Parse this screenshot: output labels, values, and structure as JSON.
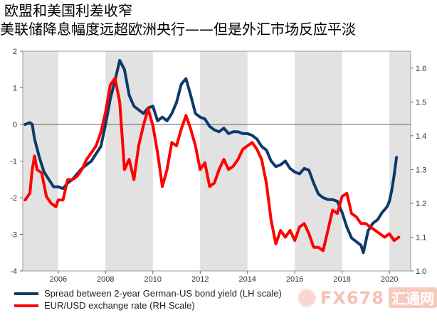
{
  "title": "欧盟和美国利差收窄",
  "subtitle": "美联储降息幅度远超欧洲央行——但是外汇市场反应平淡",
  "watermark": {
    "brand": "FX678",
    "cn": "汇通网"
  },
  "colors": {
    "spread": "#0d3a6b",
    "eurusd": "#ff0000",
    "band": "#e2e2e2"
  },
  "chart_data": {
    "type": "line",
    "left_axis": {
      "range": [
        -4,
        2
      ],
      "ticks": [
        "-4",
        "-3",
        "-2",
        "-1",
        "0",
        "1",
        "2"
      ]
    },
    "right_axis": {
      "range": [
        1.0,
        1.65
      ],
      "ticks": [
        "1.0",
        "1.1",
        "1.2",
        "1.3",
        "1.4",
        "1.5",
        "1.6"
      ]
    },
    "x_range": [
      2004.5,
      2020.9
    ],
    "x_ticks": [
      "2006",
      "2008",
      "2010",
      "2012",
      "2014",
      "2016",
      "2018",
      "2020"
    ],
    "shaded_years": [
      [
        2004.5,
        2006
      ],
      [
        2008,
        2010
      ],
      [
        2012,
        2014
      ],
      [
        2016,
        2018
      ],
      [
        2020,
        2020.9
      ]
    ],
    "zero_line": true,
    "legend_position": "bottom-left",
    "series": [
      {
        "name": "Spread between 2-year German-US bond yield (LH scale)",
        "axis": "left",
        "points": [
          [
            2004.6,
            0.0
          ],
          [
            2004.8,
            0.05
          ],
          [
            2004.9,
            0.0
          ],
          [
            2005.0,
            -0.4
          ],
          [
            2005.2,
            -0.9
          ],
          [
            2005.4,
            -1.3
          ],
          [
            2005.6,
            -1.5
          ],
          [
            2005.8,
            -1.7
          ],
          [
            2006.0,
            -1.7
          ],
          [
            2006.2,
            -1.75
          ],
          [
            2006.4,
            -1.6
          ],
          [
            2006.6,
            -1.5
          ],
          [
            2006.8,
            -1.35
          ],
          [
            2007.0,
            -1.2
          ],
          [
            2007.2,
            -1.1
          ],
          [
            2007.4,
            -1.0
          ],
          [
            2007.6,
            -0.8
          ],
          [
            2007.8,
            -0.6
          ],
          [
            2008.0,
            0.0
          ],
          [
            2008.2,
            0.7
          ],
          [
            2008.4,
            1.2
          ],
          [
            2008.6,
            1.75
          ],
          [
            2008.8,
            1.5
          ],
          [
            2009.0,
            0.8
          ],
          [
            2009.2,
            0.5
          ],
          [
            2009.4,
            0.4
          ],
          [
            2009.6,
            0.3
          ],
          [
            2009.8,
            0.45
          ],
          [
            2010.0,
            0.5
          ],
          [
            2010.2,
            0.1
          ],
          [
            2010.4,
            0.2
          ],
          [
            2010.6,
            0.1
          ],
          [
            2010.8,
            0.3
          ],
          [
            2011.0,
            0.6
          ],
          [
            2011.2,
            1.1
          ],
          [
            2011.4,
            1.25
          ],
          [
            2011.6,
            0.8
          ],
          [
            2011.8,
            0.3
          ],
          [
            2012.0,
            0.2
          ],
          [
            2012.2,
            0.15
          ],
          [
            2012.4,
            -0.05
          ],
          [
            2012.6,
            -0.15
          ],
          [
            2012.8,
            -0.2
          ],
          [
            2013.0,
            -0.1
          ],
          [
            2013.2,
            -0.25
          ],
          [
            2013.4,
            -0.2
          ],
          [
            2013.6,
            -0.2
          ],
          [
            2013.8,
            -0.25
          ],
          [
            2014.0,
            -0.25
          ],
          [
            2014.2,
            -0.3
          ],
          [
            2014.4,
            -0.4
          ],
          [
            2014.6,
            -0.6
          ],
          [
            2014.8,
            -0.7
          ],
          [
            2015.0,
            -1.0
          ],
          [
            2015.2,
            -1.15
          ],
          [
            2015.4,
            -1.1
          ],
          [
            2015.6,
            -1.0
          ],
          [
            2015.8,
            -1.2
          ],
          [
            2016.0,
            -1.3
          ],
          [
            2016.2,
            -1.35
          ],
          [
            2016.4,
            -1.2
          ],
          [
            2016.6,
            -1.25
          ],
          [
            2016.8,
            -1.6
          ],
          [
            2017.0,
            -1.9
          ],
          [
            2017.2,
            -2.0
          ],
          [
            2017.4,
            -2.05
          ],
          [
            2017.6,
            -2.05
          ],
          [
            2017.8,
            -2.1
          ],
          [
            2018.0,
            -2.4
          ],
          [
            2018.2,
            -2.8
          ],
          [
            2018.4,
            -3.1
          ],
          [
            2018.6,
            -3.2
          ],
          [
            2018.8,
            -3.3
          ],
          [
            2018.9,
            -3.5
          ],
          [
            2019.1,
            -2.9
          ],
          [
            2019.3,
            -2.7
          ],
          [
            2019.5,
            -2.6
          ],
          [
            2019.7,
            -2.4
          ],
          [
            2019.9,
            -2.25
          ],
          [
            2020.0,
            -2.1
          ],
          [
            2020.1,
            -1.8
          ],
          [
            2020.2,
            -1.4
          ],
          [
            2020.3,
            -0.9
          ]
        ]
      },
      {
        "name": "EUR/USD exchange rate (RH Scale)",
        "axis": "right",
        "points": [
          [
            2004.6,
            1.21
          ],
          [
            2004.8,
            1.23
          ],
          [
            2004.9,
            1.3
          ],
          [
            2005.0,
            1.34
          ],
          [
            2005.1,
            1.3
          ],
          [
            2005.3,
            1.29
          ],
          [
            2005.5,
            1.22
          ],
          [
            2005.7,
            1.2
          ],
          [
            2005.9,
            1.19
          ],
          [
            2006.0,
            1.21
          ],
          [
            2006.2,
            1.21
          ],
          [
            2006.4,
            1.27
          ],
          [
            2006.6,
            1.27
          ],
          [
            2006.8,
            1.28
          ],
          [
            2007.0,
            1.3
          ],
          [
            2007.2,
            1.33
          ],
          [
            2007.4,
            1.35
          ],
          [
            2007.6,
            1.37
          ],
          [
            2007.8,
            1.41
          ],
          [
            2008.0,
            1.47
          ],
          [
            2008.2,
            1.55
          ],
          [
            2008.4,
            1.57
          ],
          [
            2008.6,
            1.5
          ],
          [
            2008.8,
            1.3
          ],
          [
            2009.0,
            1.33
          ],
          [
            2009.2,
            1.27
          ],
          [
            2009.4,
            1.37
          ],
          [
            2009.6,
            1.43
          ],
          [
            2009.8,
            1.48
          ],
          [
            2010.0,
            1.43
          ],
          [
            2010.2,
            1.35
          ],
          [
            2010.4,
            1.25
          ],
          [
            2010.6,
            1.3
          ],
          [
            2010.8,
            1.38
          ],
          [
            2011.0,
            1.37
          ],
          [
            2011.2,
            1.42
          ],
          [
            2011.4,
            1.46
          ],
          [
            2011.6,
            1.42
          ],
          [
            2011.8,
            1.37
          ],
          [
            2012.0,
            1.3
          ],
          [
            2012.2,
            1.32
          ],
          [
            2012.4,
            1.25
          ],
          [
            2012.6,
            1.26
          ],
          [
            2012.8,
            1.3
          ],
          [
            2013.0,
            1.33
          ],
          [
            2013.2,
            1.3
          ],
          [
            2013.4,
            1.31
          ],
          [
            2013.6,
            1.33
          ],
          [
            2013.8,
            1.36
          ],
          [
            2014.0,
            1.37
          ],
          [
            2014.2,
            1.38
          ],
          [
            2014.4,
            1.36
          ],
          [
            2014.6,
            1.33
          ],
          [
            2014.8,
            1.26
          ],
          [
            2015.0,
            1.15
          ],
          [
            2015.2,
            1.08
          ],
          [
            2015.4,
            1.12
          ],
          [
            2015.6,
            1.1
          ],
          [
            2015.8,
            1.12
          ],
          [
            2016.0,
            1.09
          ],
          [
            2016.2,
            1.13
          ],
          [
            2016.4,
            1.14
          ],
          [
            2016.6,
            1.11
          ],
          [
            2016.8,
            1.07
          ],
          [
            2017.0,
            1.07
          ],
          [
            2017.2,
            1.06
          ],
          [
            2017.4,
            1.12
          ],
          [
            2017.6,
            1.18
          ],
          [
            2017.8,
            1.17
          ],
          [
            2018.0,
            1.22
          ],
          [
            2018.2,
            1.23
          ],
          [
            2018.4,
            1.17
          ],
          [
            2018.6,
            1.16
          ],
          [
            2018.8,
            1.14
          ],
          [
            2019.0,
            1.14
          ],
          [
            2019.2,
            1.13
          ],
          [
            2019.4,
            1.12
          ],
          [
            2019.6,
            1.11
          ],
          [
            2019.8,
            1.1
          ],
          [
            2020.0,
            1.11
          ],
          [
            2020.2,
            1.09
          ],
          [
            2020.4,
            1.1
          ]
        ]
      }
    ]
  }
}
